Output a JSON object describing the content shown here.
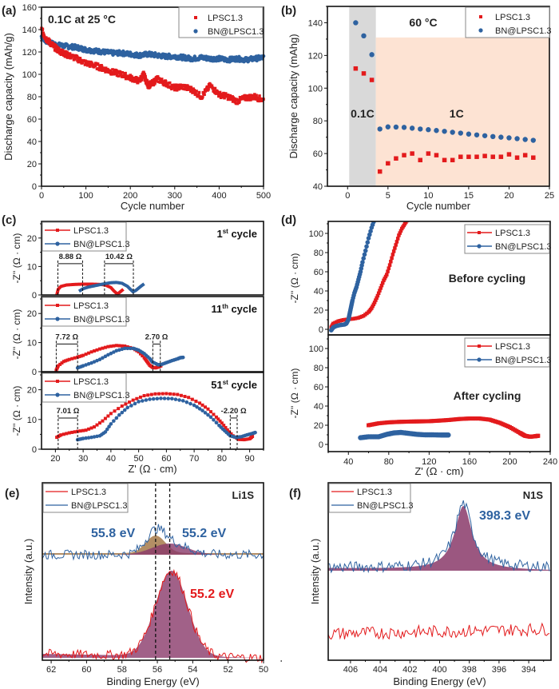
{
  "colors": {
    "red": "#e31a1c",
    "blue": "#2e62a0",
    "fill_purple": "#8a3a6a",
    "fill_brown": "#a67a4a",
    "shade_gray": "#cfcfcf",
    "shade_peach": "#fde3d3"
  },
  "chart_data": [
    {
      "panel": "(a)",
      "type": "scatter",
      "annotation": "0.1C at 25 °C",
      "xlabel": "Cycle number",
      "ylabel": "Discharge capacity (mAh/g)",
      "xlim": [
        0,
        500
      ],
      "ylim": [
        0,
        160
      ],
      "xticks": [
        "0",
        "100",
        "200",
        "300",
        "400",
        "500"
      ],
      "yticks": [
        "0",
        "20",
        "40",
        "60",
        "80",
        "100",
        "120",
        "140",
        "160"
      ],
      "legend": "top-right",
      "series": [
        {
          "name": "LPSC1.3",
          "marker": "square",
          "color": "red",
          "x": [
            0,
            10,
            20,
            30,
            40,
            50,
            60,
            80,
            100,
            120,
            140,
            160,
            180,
            200,
            220,
            230,
            240,
            250,
            260,
            280,
            300,
            320,
            340,
            360,
            380,
            400,
            420,
            440,
            460,
            480,
            500
          ],
          "y": [
            140,
            132,
            128,
            124,
            121,
            119,
            117,
            114,
            110,
            108,
            105,
            102,
            100,
            97,
            94,
            100,
            90,
            92,
            96,
            92,
            88,
            89,
            86,
            80,
            90,
            82,
            80,
            76,
            79,
            80,
            77
          ]
        },
        {
          "name": "BN@LPSC1.3",
          "marker": "circle",
          "color": "blue",
          "x": [
            0,
            10,
            20,
            40,
            60,
            80,
            100,
            120,
            140,
            160,
            180,
            200,
            220,
            240,
            260,
            280,
            300,
            320,
            340,
            360,
            380,
            400,
            420,
            440,
            460,
            480,
            500
          ],
          "y": [
            134,
            130,
            128,
            126,
            125,
            124,
            122,
            121,
            120,
            119,
            119,
            118,
            117,
            118,
            117,
            116,
            116,
            115,
            114,
            115,
            114,
            114,
            113,
            114,
            113,
            114,
            115
          ]
        }
      ]
    },
    {
      "panel": "(b)",
      "type": "scatter",
      "annotations": [
        "60 °C",
        "0.1C",
        "1C"
      ],
      "xlabel": "Cycle number",
      "ylabel": "Discharge capacity (mAhg)",
      "xlim": [
        -2.5,
        25
      ],
      "ylim": [
        40,
        150
      ],
      "xticks": [
        "0",
        "5",
        "10",
        "15",
        "20",
        "25"
      ],
      "yticks": [
        "40",
        "60",
        "80",
        "100",
        "120",
        "140"
      ],
      "legend": "top-right",
      "regions": [
        {
          "label": "0.1C",
          "x": [
            0.2,
            3.5
          ],
          "color": "shade_gray"
        },
        {
          "label": "1C",
          "x": [
            3.5,
            25
          ],
          "color": "shade_peach"
        }
      ],
      "series": [
        {
          "name": "LPSC1.3",
          "marker": "square",
          "color": "red",
          "x": [
            1,
            2,
            3,
            4,
            5,
            6,
            7,
            8,
            9,
            10,
            11,
            12,
            13,
            14,
            15,
            16,
            17,
            18,
            19,
            20,
            21,
            22,
            23
          ],
          "y": [
            112,
            109,
            105,
            49,
            54,
            57,
            59,
            60,
            56,
            60,
            59,
            56,
            56,
            58,
            58,
            58,
            58.5,
            58,
            58,
            59.5,
            57.5,
            59,
            57.5
          ]
        },
        {
          "name": "BN@LPSC1.3",
          "marker": "circle",
          "color": "blue",
          "x": [
            1,
            2,
            3,
            4,
            5,
            6,
            7,
            8,
            9,
            10,
            11,
            12,
            13,
            14,
            15,
            16,
            17,
            18,
            19,
            20,
            21,
            22,
            23
          ],
          "y": [
            140,
            132,
            120.5,
            75,
            76.3,
            76.2,
            76,
            75.5,
            75,
            74.6,
            74.1,
            73.6,
            73,
            72.5,
            71.9,
            71.4,
            70.9,
            70.4,
            70,
            69.6,
            69.1,
            68.6,
            68.1
          ]
        }
      ]
    },
    {
      "panel": "(c)",
      "type": "line",
      "xlabel": "Z' (Ω · cm)",
      "ylabel": "-Z'' (Ω · cm)",
      "xlim": [
        15,
        95
      ],
      "ylim": [
        0,
        25
      ],
      "xticks": [
        "20",
        "30",
        "40",
        "50",
        "60",
        "70",
        "80",
        "90"
      ],
      "yticks": [
        "0",
        "10",
        "20"
      ],
      "legend": "top-left",
      "subplots": [
        {
          "title": "1st cycle",
          "title_main": "1",
          "title_sup": "st",
          "title_rest": " cycle",
          "labels": [
            {
              "text": "8.88 Ω",
              "x1": 20.9,
              "x2": 29.8
            },
            {
              "text": "10.42 Ω",
              "x1": 37.7,
              "x2": 48.1
            }
          ],
          "series": [
            {
              "name": "LPSC1.3",
              "x": [
                20.5,
                21,
                22,
                24,
                27,
                30,
                33,
                36,
                38,
                40,
                41,
                42,
                42.5,
                43,
                43.5,
                44,
                44.5
              ],
              "y": [
                0,
                2,
                3,
                3.5,
                3.7,
                3.8,
                3.8,
                3.7,
                3.5,
                2.6,
                1.5,
                0.6,
                0.4,
                0.8,
                1.2,
                1.6,
                2.0
              ]
            },
            {
              "name": "BN@LPSC1.3",
              "x": [
                28.5,
                30,
                32,
                34,
                36,
                38,
                40,
                42,
                44,
                46,
                47,
                48,
                49,
                50,
                51,
                52
              ],
              "y": [
                1.3,
                2.2,
                2.8,
                3.2,
                3.6,
                4,
                4.3,
                4.4,
                4.1,
                3,
                2,
                1.1,
                1.6,
                2.4,
                3.2,
                3.9
              ]
            }
          ]
        },
        {
          "title": "11th cycle",
          "title_main": "11",
          "title_sup": "th",
          "title_rest": " cycle",
          "labels": [
            {
              "text": "7.72 Ω",
              "x1": 20.3,
              "x2": 28.0
            },
            {
              "text": "2.70 Ω",
              "x1": 55.1,
              "x2": 57.8
            }
          ],
          "series": [
            {
              "name": "LPSC1.3",
              "x": [
                20.3,
                21,
                23,
                25,
                28,
                30,
                33,
                36,
                39,
                42,
                45,
                48,
                50,
                52,
                53,
                54,
                55,
                56,
                57,
                58
              ],
              "y": [
                0.5,
                2,
                3.5,
                4.2,
                5,
                5.6,
                6.8,
                7.8,
                8.6,
                9,
                8.8,
                8,
                6.8,
                4.8,
                3.5,
                2.2,
                1.5,
                1.3,
                1.6,
                2
              ]
            },
            {
              "name": "BN@LPSC1.3",
              "x": [
                28,
                30,
                33,
                36,
                39,
                42,
                45,
                48,
                50,
                52,
                54,
                55,
                57,
                58,
                60,
                62,
                64,
                65,
                66
              ],
              "y": [
                1.3,
                2,
                3,
                4.2,
                5.8,
                7.2,
                8,
                8,
                7.4,
                6.2,
                4.5,
                3.3,
                2.4,
                2.4,
                3.1,
                3.8,
                4.4,
                4.8,
                4.9
              ]
            }
          ]
        },
        {
          "title": "51st cycle",
          "title_main": "51",
          "title_sup": "st",
          "title_rest": " cycle",
          "labels": [
            {
              "text": "7.01 Ω",
              "x1": 21.0,
              "x2": 28.0
            },
            {
              "text": "-2.20 Ω",
              "x1": 83.0,
              "x2": 85.5
            }
          ],
          "series": [
            {
              "name": "LPSC1.3",
              "x": [
                20.5,
                22,
                25,
                28,
                31,
                34,
                37,
                40,
                44,
                48,
                52,
                56,
                60,
                64,
                68,
                72,
                75,
                78,
                80,
                82,
                84,
                86,
                88,
                90,
                91
              ],
              "y": [
                4,
                4.8,
                5.5,
                6,
                6.4,
                7.5,
                9.5,
                12,
                14.5,
                16.5,
                18,
                18.6,
                18.7,
                18.4,
                17.4,
                15.5,
                13.5,
                10.8,
                8.8,
                6.5,
                4.5,
                3.3,
                3.2,
                3.5,
                4.3
              ]
            },
            {
              "name": "BN@LPSC1.3",
              "x": [
                28,
                30,
                33,
                36,
                38,
                40,
                43,
                46,
                50,
                54,
                58,
                62,
                66,
                70,
                73,
                76,
                79,
                81,
                83,
                85,
                87,
                89,
                91,
                92
              ],
              "y": [
                3.2,
                3.6,
                4,
                4.5,
                5.8,
                8.5,
                11.5,
                14,
                16,
                16.8,
                17.1,
                17,
                16.3,
                14.8,
                13,
                10.8,
                8,
                6.2,
                4.5,
                4,
                4.2,
                4.8,
                5.3,
                5.6
              ]
            }
          ]
        }
      ]
    },
    {
      "panel": "(d)",
      "type": "line",
      "xlabel": "Z' (Ω · cm)",
      "ylabel": "-Z'' (Ω · cm)",
      "xlim": [
        20,
        240
      ],
      "ylim": [
        -5,
        115
      ],
      "xticks": [
        "40",
        "80",
        "120",
        "160",
        "200",
        "240"
      ],
      "yticks": [
        "0",
        "20",
        "40",
        "60",
        "80",
        "100"
      ],
      "legend": "top-right",
      "subplots": [
        {
          "title": "Before cycling",
          "series": [
            {
              "name": "LPSC1.3",
              "x": [
                23,
                25,
                30,
                35,
                40,
                45,
                50,
                55,
                60,
                63,
                66,
                69,
                72,
                75,
                78,
                81,
                84,
                87,
                90,
                93,
                96,
                99,
                102
              ],
              "y": [
                2,
                6,
                8.5,
                9.8,
                10.5,
                11,
                12,
                14,
                18,
                22,
                28,
                35,
                43,
                51,
                57,
                67,
                78,
                88,
                98,
                105,
                110,
                115,
                118
              ]
            },
            {
              "name": "BN@LPSC1.3",
              "x": [
                23,
                25,
                28,
                32,
                36,
                38,
                40,
                41,
                42,
                43,
                44,
                46,
                48,
                50,
                52,
                54,
                57,
                60,
                63,
                66,
                68
              ],
              "y": [
                -1,
                2,
                3.5,
                4.5,
                5,
                6,
                10,
                15,
                20,
                25,
                30,
                38,
                44,
                52,
                60,
                70,
                82,
                95,
                106,
                115,
                120
              ]
            }
          ]
        },
        {
          "title": "After cycling",
          "series": [
            {
              "name": "LPSC1.3",
              "x": [
                60,
                70,
                80,
                90,
                100,
                110,
                120,
                130,
                140,
                150,
                160,
                170,
                180,
                190,
                200,
                210,
                215,
                220,
                225,
                228
              ],
              "y": [
                20,
                22,
                23,
                23.5,
                23.8,
                24,
                24.2,
                24.8,
                25.5,
                26.5,
                27,
                27,
                25.8,
                22.5,
                18,
                12,
                9,
                8,
                8.5,
                9
              ]
            },
            {
              "name": "BN@LPSC1.3",
              "x": [
                52,
                60,
                70,
                78,
                85,
                92,
                100,
                108,
                116,
                124,
                132,
                139
              ],
              "y": [
                7,
                8,
                8,
                10.5,
                12,
                12.5,
                11.5,
                10.5,
                10,
                10,
                9.8,
                9.8
              ]
            }
          ]
        }
      ]
    },
    {
      "panel": "(e)",
      "type": "line",
      "title": "Li1S",
      "xlabel": "Binding Energy (eV)",
      "ylabel": "Intensity (a.u.)",
      "xlim": [
        62.5,
        50
      ],
      "xticks": [
        "62",
        "60",
        "58",
        "56",
        "54",
        "52",
        "50"
      ],
      "legend": "top-left",
      "annotations": [
        {
          "text": "55.8 eV",
          "color": "blue"
        },
        {
          "text": "55.2 eV",
          "color": "blue"
        },
        {
          "text": "55.2 eV",
          "color": "red"
        }
      ],
      "reference_lines": [
        56.1,
        55.3
      ],
      "series": [
        {
          "name": "LPSC1.3",
          "peak_center": 55.2,
          "style": "noisy spectrum with fitted peak"
        },
        {
          "name": "BN@LPSC1.3",
          "peak_centers": [
            55.8,
            55.2
          ],
          "style": "noisy spectrum with two fitted peaks"
        }
      ]
    },
    {
      "panel": "(f)",
      "type": "line",
      "title": "N1S",
      "xlabel": "Binding Energy (eV)",
      "ylabel": "Intensity (a.u.)",
      "xlim": [
        407.5,
        392.5
      ],
      "xticks": [
        "406",
        "404",
        "402",
        "400",
        "398",
        "396",
        "394"
      ],
      "legend": "top-left",
      "annotations": [
        {
          "text": "398.3 eV",
          "color": "blue"
        }
      ],
      "series": [
        {
          "name": "LPSC1.3",
          "style": "noise only"
        },
        {
          "name": "BN@LPSC1.3",
          "peak_center": 398.3,
          "style": "noisy spectrum with fitted peak"
        }
      ]
    }
  ]
}
